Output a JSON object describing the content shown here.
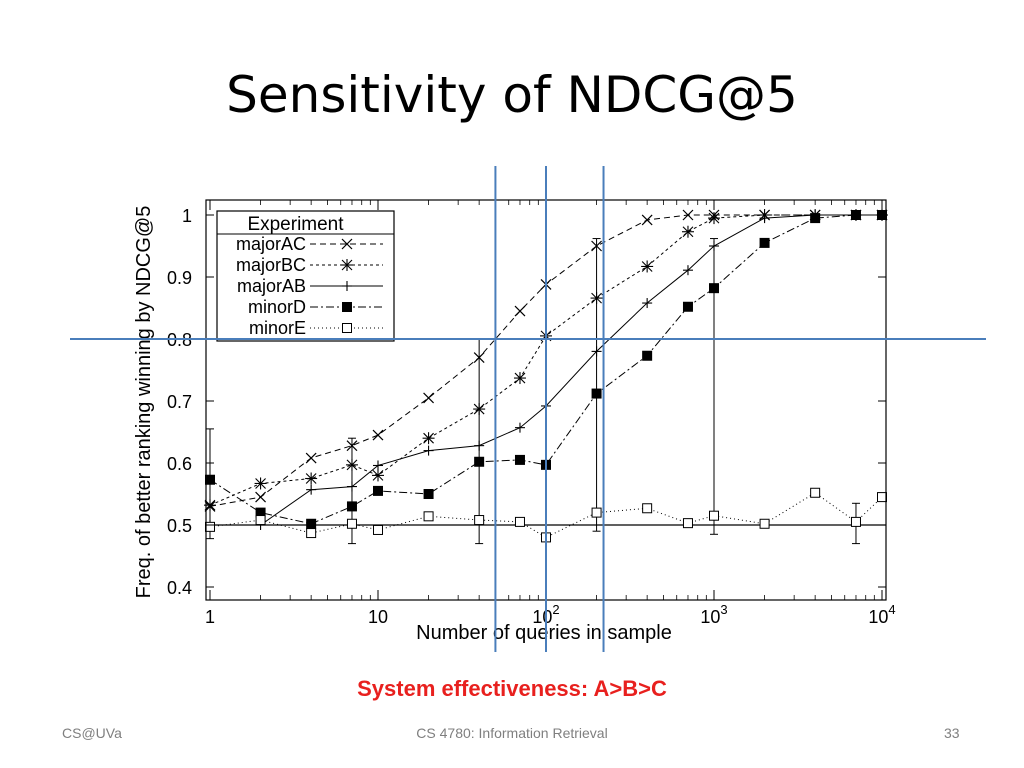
{
  "slide": {
    "title": "Sensitivity of NDCG@5",
    "note": "System effectiveness: A>B>C",
    "footer_left": "CS@UVa",
    "footer_center": "CS 4780: Information Retrieval",
    "page_number": "33",
    "note_color": "#e8201e",
    "guide_color": "#4a7ebb"
  },
  "chart_data": {
    "type": "line",
    "title": "",
    "xlabel": "Number of queries in sample",
    "ylabel": "Freq. of better ranking winning by NDCG@5",
    "xscale": "log",
    "xlim": [
      1,
      10000
    ],
    "ylim": [
      0.4,
      1.0
    ],
    "yticks": [
      0.4,
      0.5,
      0.6,
      0.7,
      0.8,
      0.9,
      1.0
    ],
    "ytick_labels": [
      "0.4",
      "0.5",
      "0.6",
      "0.7",
      "0.8",
      "0.9",
      "1"
    ],
    "xticks": [
      {
        "value": 1,
        "base": "1",
        "exp": ""
      },
      {
        "value": 10,
        "base": "10",
        "exp": ""
      },
      {
        "value": 100,
        "base": "10",
        "exp": "2"
      },
      {
        "value": 1000,
        "base": "10",
        "exp": "3"
      },
      {
        "value": 10000,
        "base": "10",
        "exp": "4"
      }
    ],
    "reference_line": 0.5,
    "guides": {
      "vertical_x": [
        50,
        100,
        220
      ],
      "horizontal_y": 0.8
    },
    "legend": {
      "title": "Experiment",
      "position": "top-left"
    },
    "series": [
      {
        "name": "majorAC",
        "marker": "x",
        "dash": "6,4",
        "x": [
          1,
          2,
          4,
          7,
          10,
          20,
          40,
          70,
          100,
          200,
          400,
          700,
          1000,
          2000,
          4000,
          7000,
          10000
        ],
        "y": [
          0.53,
          0.545,
          0.608,
          0.628,
          0.645,
          0.705,
          0.77,
          0.845,
          0.888,
          0.95,
          0.992,
          1.0,
          1.0,
          1.0,
          1.0,
          1.0,
          1.0
        ]
      },
      {
        "name": "majorBC",
        "marker": "star",
        "dash": "3,3",
        "x": [
          1,
          2,
          4,
          7,
          10,
          20,
          40,
          70,
          100,
          200,
          400,
          700,
          1000,
          2000,
          4000,
          7000,
          10000
        ],
        "y": [
          0.532,
          0.567,
          0.575,
          0.597,
          0.58,
          0.64,
          0.687,
          0.737,
          0.805,
          0.866,
          0.917,
          0.973,
          0.995,
          1.0,
          1.0,
          1.0,
          1.0
        ]
      },
      {
        "name": "majorAB",
        "marker": "plus",
        "dash": "",
        "x": [
          1,
          2,
          4,
          7,
          10,
          20,
          40,
          70,
          100,
          200,
          400,
          700,
          1000,
          2000,
          4000,
          7000,
          10000
        ],
        "y": [
          0.5,
          0.5,
          0.557,
          0.562,
          0.596,
          0.62,
          0.628,
          0.657,
          0.692,
          0.78,
          0.858,
          0.911,
          0.95,
          0.995,
          1.0,
          1.0,
          1.0
        ]
      },
      {
        "name": "minorD",
        "marker": "filled-square",
        "dash": "8,3,2,3",
        "x": [
          1,
          2,
          4,
          7,
          10,
          20,
          40,
          70,
          100,
          200,
          400,
          700,
          1000,
          2000,
          4000,
          7000,
          10000
        ],
        "y": [
          0.573,
          0.52,
          0.502,
          0.53,
          0.555,
          0.55,
          0.602,
          0.605,
          0.597,
          0.712,
          0.773,
          0.852,
          0.882,
          0.955,
          0.995,
          1.0,
          1.0
        ]
      },
      {
        "name": "minorE",
        "marker": "open-square",
        "dash": "1,3",
        "x": [
          1,
          2,
          4,
          7,
          10,
          20,
          40,
          70,
          100,
          200,
          400,
          700,
          1000,
          2000,
          4000,
          7000,
          10000
        ],
        "y": [
          0.497,
          0.508,
          0.487,
          0.502,
          0.492,
          0.514,
          0.508,
          0.505,
          0.48,
          0.52,
          0.527,
          0.503,
          0.515,
          0.502,
          0.552,
          0.505,
          0.545
        ]
      }
    ],
    "error_bars": [
      {
        "x": 1,
        "low": 0.478,
        "high": 0.655
      },
      {
        "x": 7,
        "low": 0.47,
        "high": 0.64
      },
      {
        "x": 40,
        "low": 0.47,
        "high": 0.8
      },
      {
        "x": 200,
        "low": 0.49,
        "high": 0.962
      },
      {
        "x": 1000,
        "low": 0.485,
        "high": 0.962
      },
      {
        "x": 7000,
        "low": 0.47,
        "high": 0.535
      }
    ]
  }
}
